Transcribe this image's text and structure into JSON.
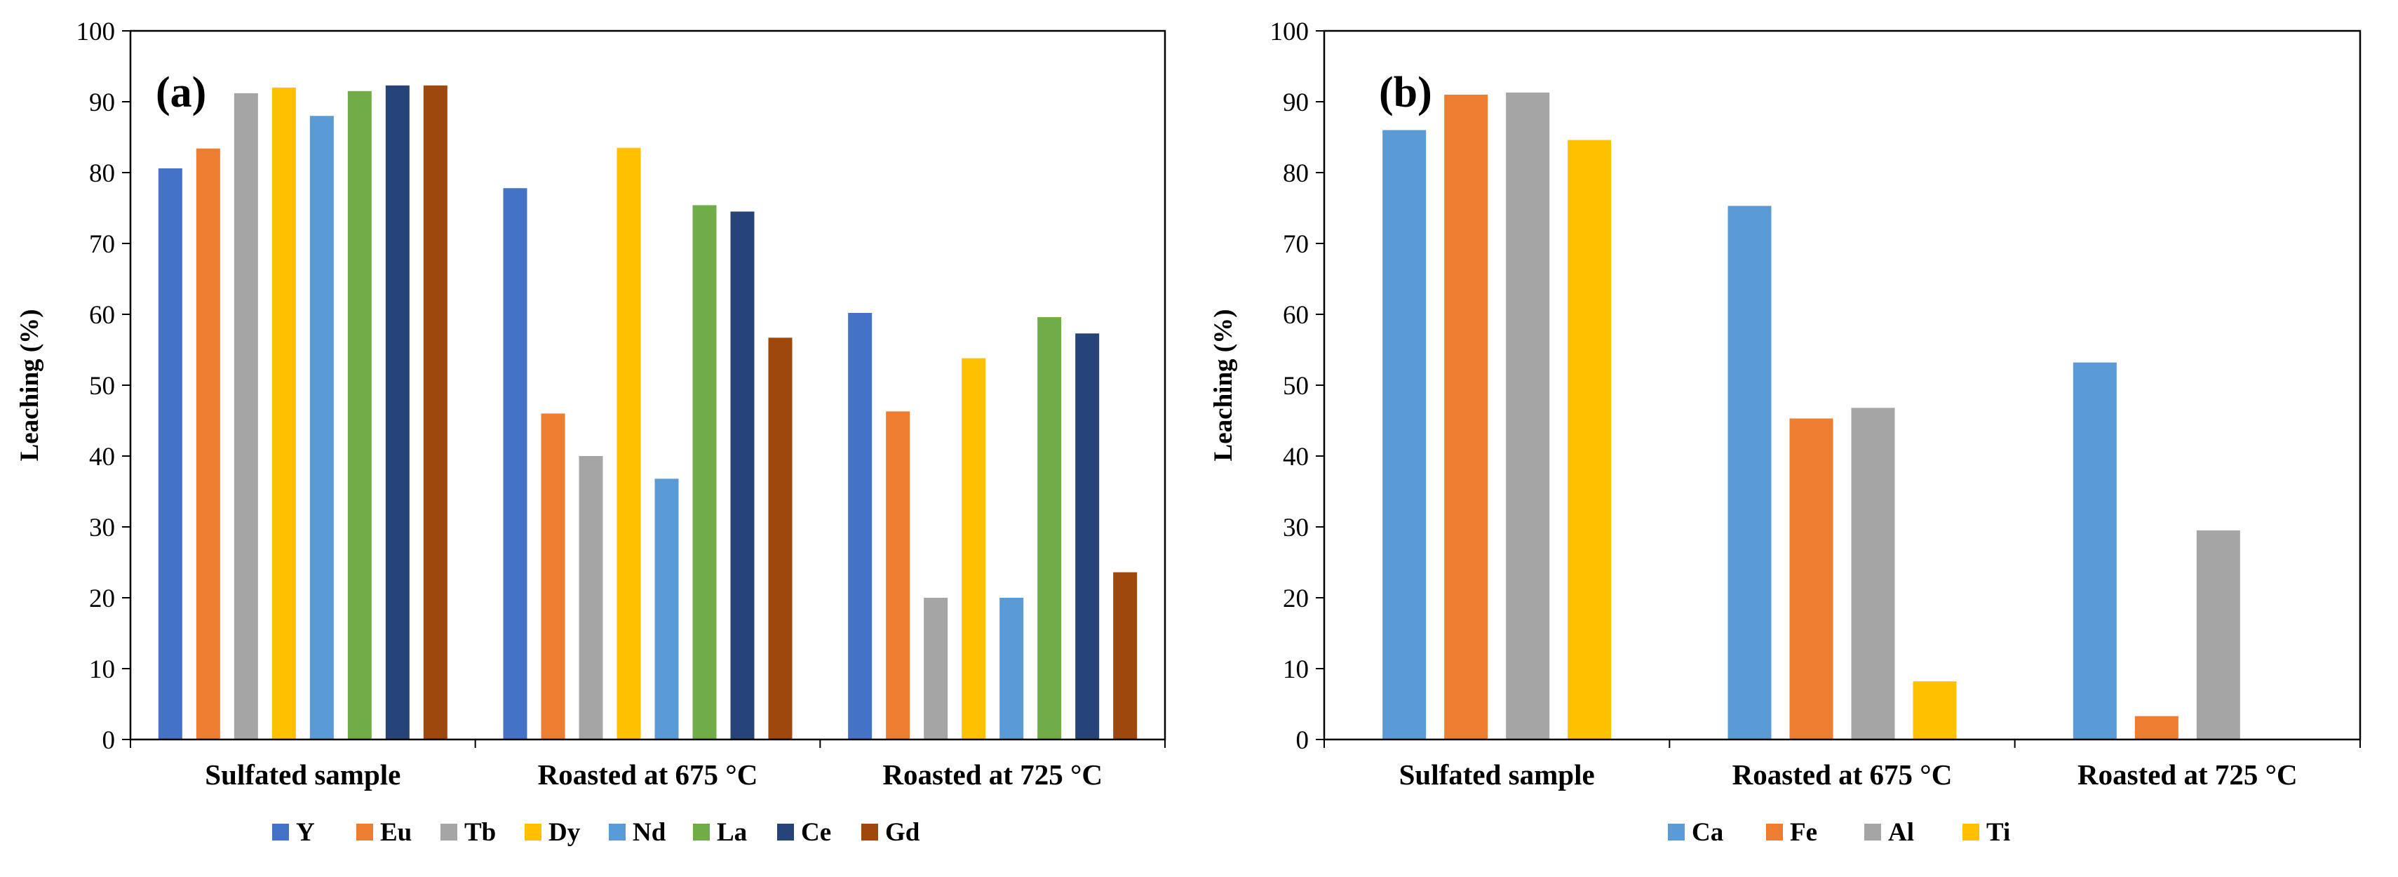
{
  "chart_data": [
    {
      "type": "bar",
      "panel_label": "(a)",
      "title": "",
      "xlabel": "",
      "ylabel": "Leaching  (%)",
      "ylim": [
        0,
        100
      ],
      "ytick_step": 10,
      "grid": false,
      "legend_position": "bottom",
      "categories": [
        "Sulfated sample",
        "Roasted at 675 °C",
        "Roasted at 725 °C"
      ],
      "series": [
        {
          "name": "Y",
          "color": "#4472C4",
          "values": [
            80.6,
            77.8,
            60.2
          ]
        },
        {
          "name": "Eu",
          "color": "#ED7D31",
          "values": [
            83.4,
            46.0,
            46.3
          ]
        },
        {
          "name": "Tb",
          "color": "#A5A5A5",
          "values": [
            91.2,
            40.0,
            20.0
          ]
        },
        {
          "name": "Dy",
          "color": "#FFC000",
          "values": [
            92.0,
            83.5,
            53.8
          ]
        },
        {
          "name": "Nd",
          "color": "#5B9BD5",
          "values": [
            88.0,
            36.8,
            20.0
          ]
        },
        {
          "name": "La",
          "color": "#70AD47",
          "values": [
            91.5,
            75.4,
            59.6
          ]
        },
        {
          "name": "Ce",
          "color": "#264478",
          "values": [
            92.3,
            74.5,
            57.3
          ]
        },
        {
          "name": "Gd",
          "color": "#9E480E",
          "values": [
            92.3,
            56.7,
            23.6
          ]
        }
      ]
    },
    {
      "type": "bar",
      "panel_label": "(b)",
      "title": "",
      "xlabel": "",
      "ylabel": "Leaching  (%)",
      "ylim": [
        0,
        100
      ],
      "ytick_step": 10,
      "grid": false,
      "legend_position": "bottom",
      "categories": [
        "Sulfated sample",
        "Roasted at 675 °C",
        "Roasted at 725 °C"
      ],
      "series": [
        {
          "name": "Ca",
          "color": "#5B9BD5",
          "values": [
            86.0,
            75.3,
            53.2
          ]
        },
        {
          "name": "Fe",
          "color": "#ED7D31",
          "values": [
            91.0,
            45.3,
            3.3
          ]
        },
        {
          "name": "Al",
          "color": "#A5A5A5",
          "values": [
            91.3,
            46.8,
            29.5
          ]
        },
        {
          "name": "Ti",
          "color": "#FFC000",
          "values": [
            84.6,
            8.2,
            0
          ]
        }
      ]
    }
  ]
}
